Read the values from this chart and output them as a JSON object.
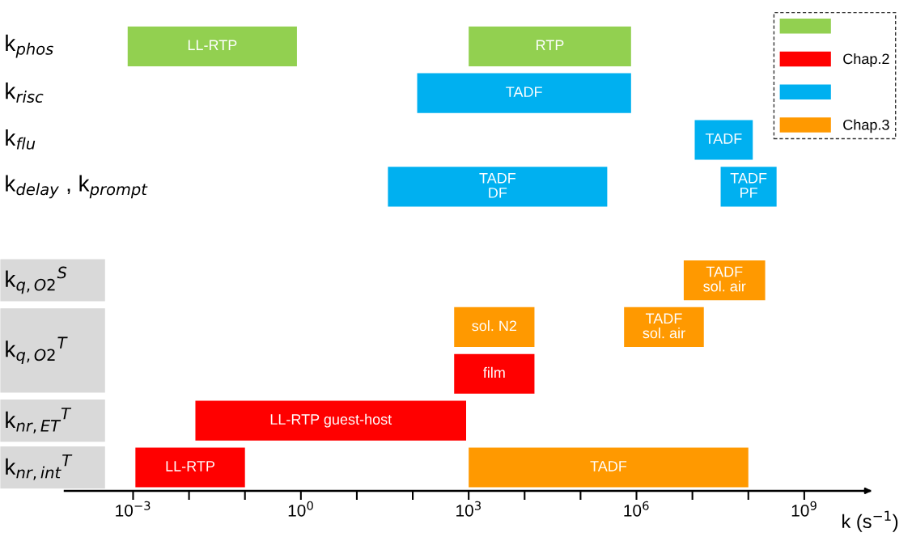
{
  "chart_data": {
    "type": "bar",
    "orientation": "horizontal",
    "log": "x",
    "legend": "top right",
    "xlabel": "k (s$^{−1}$)",
    "categories": [
      "k$_{phos}$",
      "k$_{risc}$",
      "k$_{flu}$",
      "k$_{delay}$ , k$_{prompt}$",
      null,
      "k$_{q,O2}$$^{S}$",
      "k$_{q,O2}$$^{T}$",
      null,
      "k$_{nr,ET}$$^{T}$",
      "k$_{nr,int}$$^{T}$"
    ],
    "xlim": [
      6e-05,
      15000000000.0
    ],
    "xticks": [
      {
        "value": 0.001,
        "label": "10$^{−3}$"
      },
      {
        "value": 0.01,
        "label": null
      },
      {
        "value": 0.1,
        "label": null
      },
      {
        "value": 1,
        "label": "10$^{0}$"
      },
      {
        "value": 10,
        "label": null
      },
      {
        "value": 100,
        "label": null
      },
      {
        "value": 1000,
        "label": "10$^{3}$"
      },
      {
        "value": 10000,
        "label": null
      },
      {
        "value": 100000,
        "label": null
      },
      {
        "value": 1000000,
        "label": "10$^{6}$"
      },
      {
        "value": 10000000,
        "label": null
      },
      {
        "value": 100000000,
        "label": null
      },
      {
        "value": 1000000000,
        "label": "10$^{9}$"
      }
    ],
    "series": [
      {
        "color": "#92d050",
        "base": [
          0.0008,
          null,
          null,
          null,
          null,
          null,
          null,
          null,
          null,
          null
        ],
        "values": [
          0.8492,
          null,
          null,
          null,
          null,
          null,
          null,
          null,
          null,
          null
        ],
        "value_labels": [
          "LL-RTP",
          null,
          null,
          null,
          null,
          null,
          null,
          null,
          null,
          null
        ]
      },
      {
        "color": "#92d050",
        "base": [
          1000,
          null,
          null,
          null,
          null,
          null,
          null,
          null,
          null,
          null
        ],
        "values": [
          799000,
          null,
          null,
          null,
          null,
          null,
          null,
          null,
          null,
          null
        ],
        "value_labels": [
          "RTP",
          null,
          null,
          null,
          null,
          null,
          null,
          null,
          null,
          null
        ]
      },
      {
        "name": "Chap.2",
        "color": "#ff0000",
        "base": [
          null,
          null,
          null,
          null,
          null,
          null,
          null,
          550,
          0.013,
          0.0011
        ],
        "values": [
          null,
          null,
          null,
          null,
          null,
          null,
          null,
          14450,
          899.987,
          0.0989
        ],
        "value_labels": [
          null,
          null,
          null,
          null,
          null,
          null,
          null,
          "film",
          "LL-RTP guest-host",
          "LL-RTP"
        ]
      },
      {
        "color": "#00b0f0",
        "base": [
          null,
          120,
          11000000,
          36,
          null,
          null,
          null,
          null,
          null,
          null
        ],
        "values": [
          null,
          799880,
          109000000,
          299964,
          null,
          null,
          null,
          null,
          null,
          null
        ],
        "value_labels": [
          null,
          "TADF",
          "TADF",
          "TADF\nDF",
          null,
          null,
          null,
          null,
          null,
          null
        ]
      },
      {
        "color": "#00b0f0",
        "base": [
          null,
          null,
          null,
          32000000,
          null,
          null,
          null,
          null,
          null,
          null
        ],
        "values": [
          null,
          null,
          null,
          288000000,
          null,
          null,
          null,
          null,
          null,
          null
        ],
        "value_labels": [
          null,
          null,
          null,
          "TADF\nPF",
          null,
          null,
          null,
          null,
          null,
          null
        ]
      },
      {
        "name": "Chap.3",
        "color": "#ff9900",
        "base": [
          null,
          null,
          null,
          null,
          null,
          7000000,
          550,
          null,
          null,
          1000
        ],
        "values": [
          null,
          null,
          null,
          null,
          null,
          193000000,
          14450,
          null,
          null,
          99999000
        ],
        "value_labels": [
          null,
          null,
          null,
          null,
          null,
          "TADF\nsol. air",
          "sol. N2",
          null,
          null,
          "TADF"
        ]
      },
      {
        "color": "#ff9900",
        "base": [
          null,
          null,
          null,
          null,
          null,
          null,
          600000,
          null,
          null,
          null
        ],
        "values": [
          null,
          null,
          null,
          null,
          null,
          null,
          15400000,
          null,
          null,
          null
        ],
        "value_labels": [
          null,
          null,
          null,
          null,
          null,
          null,
          "TADF\nsol. air",
          null,
          null,
          null
        ]
      }
    ]
  }
}
